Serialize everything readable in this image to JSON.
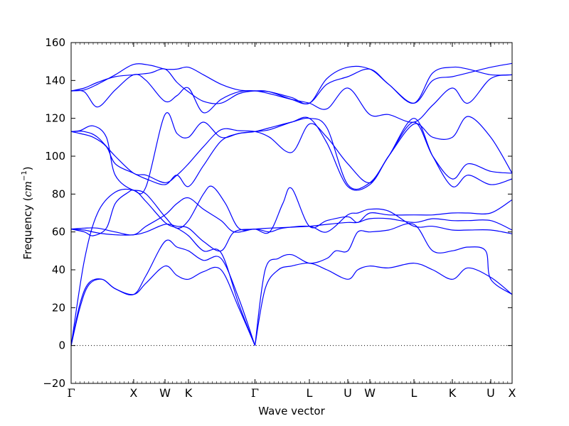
{
  "chart_data": {
    "type": "line",
    "title": "",
    "xlabel": "Wave vector",
    "ylabel_text": "Frequency (",
    "ylabel_unit_base": "cm",
    "ylabel_unit_exp": "−1",
    "ylabel_close": ")",
    "ylim": [
      -20,
      160
    ],
    "yticks": [
      -20,
      0,
      20,
      40,
      60,
      80,
      100,
      120,
      140,
      160
    ],
    "ytick_labels": [
      "−20",
      "0",
      "20",
      "40",
      "60",
      "80",
      "100",
      "120",
      "140",
      "160"
    ],
    "xlim": [
      0,
      1
    ],
    "kpoints": [
      {
        "label": "Γ",
        "x": 0.0
      },
      {
        "label": "X",
        "x": 0.1418
      },
      {
        "label": "W",
        "x": 0.2129
      },
      {
        "label": "K",
        "x": 0.2661
      },
      {
        "label": "Γ",
        "x": 0.4169
      },
      {
        "label": "L",
        "x": 0.5403
      },
      {
        "label": "U",
        "x": 0.6274
      },
      {
        "label": "W",
        "x": 0.6774
      },
      {
        "label": "L",
        "x": 0.7774
      },
      {
        "label": "K",
        "x": 0.8645
      },
      {
        "label": "U",
        "x": 0.9516
      },
      {
        "label": "X",
        "x": 1.0
      }
    ],
    "zero_line": {
      "y": 0,
      "style": "dotted"
    },
    "line_color": "#0000ff",
    "series": [
      {
        "x": [
          0,
          0.02,
          0.04,
          0.07,
          0.1,
          0.1418,
          0.17,
          0.2129,
          0.24,
          0.2661,
          0.3,
          0.34,
          0.38,
          0.4169
        ],
        "y": [
          0,
          20,
          32,
          35,
          30,
          27,
          33,
          42,
          37,
          35,
          39,
          40,
          20,
          0
        ]
      },
      {
        "x": [
          0,
          0.02,
          0.04,
          0.07,
          0.1,
          0.1418,
          0.17,
          0.2129,
          0.24,
          0.2661,
          0.3,
          0.34,
          0.38,
          0.4169
        ],
        "y": [
          0,
          22,
          33,
          35,
          30,
          27,
          37,
          55,
          52,
          50,
          45,
          46,
          25,
          0
        ]
      },
      {
        "x": [
          0,
          0.03,
          0.06,
          0.1,
          0.1418,
          0.17,
          0.2129,
          0.24,
          0.2661,
          0.3,
          0.34,
          0.38,
          0.4169
        ],
        "y": [
          0,
          45,
          70,
          81,
          82,
          76,
          65,
          62,
          58,
          50,
          49,
          22,
          0
        ]
      },
      {
        "x": [
          0.4169,
          0.44,
          0.47,
          0.5,
          0.5403,
          0.58,
          0.6274,
          0.65,
          0.6774,
          0.72,
          0.7774,
          0.82,
          0.8645,
          0.9,
          0.9516,
          1.0
        ],
        "y": [
          0,
          30,
          40,
          42,
          43.5,
          40,
          35,
          40,
          42,
          41,
          43.5,
          40,
          35,
          41,
          36,
          27
        ]
      },
      {
        "x": [
          0.4169,
          0.44,
          0.47,
          0.5,
          0.5403,
          0.58,
          0.6,
          0.6274,
          0.65,
          0.6774,
          0.72,
          0.7774,
          0.82,
          0.8645,
          0.9,
          0.94,
          0.9516,
          1.0
        ],
        "y": [
          0,
          40,
          46,
          48,
          43.5,
          46,
          50,
          50,
          60,
          60,
          61,
          64,
          50,
          50,
          52,
          50,
          35,
          27
        ]
      },
      {
        "x": [
          0,
          0.03,
          0.05,
          0.08,
          0.1,
          0.13,
          0.1418,
          0.17,
          0.2129,
          0.24,
          0.2661,
          0.3,
          0.32,
          0.35,
          0.38,
          0.4169,
          0.45,
          0.48,
          0.5,
          0.5403,
          0.58,
          0.6274,
          0.65,
          0.6774,
          0.72,
          0.7774,
          0.82,
          0.8645,
          0.9,
          0.9516,
          1.0
        ],
        "y": [
          61.5,
          60,
          58,
          62,
          75,
          81,
          82,
          80,
          68,
          62,
          66,
          80,
          84,
          75,
          62,
          61.5,
          60,
          75,
          83,
          63,
          66,
          68,
          65,
          70,
          69,
          69,
          69,
          70,
          70,
          70,
          77
        ]
      },
      {
        "x": [
          0,
          0.03,
          0.06,
          0.1,
          0.1418,
          0.17,
          0.2129,
          0.24,
          0.2661,
          0.3,
          0.34,
          0.37,
          0.4169,
          0.45,
          0.5,
          0.5403,
          0.58,
          0.6274,
          0.65,
          0.6774,
          0.72,
          0.7774,
          0.82,
          0.8645,
          0.9,
          0.9516,
          1.0
        ],
        "y": [
          61.5,
          61,
          59.5,
          58.5,
          58.5,
          60,
          64,
          63,
          62,
          55,
          50,
          60,
          61.5,
          62,
          62.5,
          63,
          64,
          65,
          65,
          67,
          67,
          65,
          67,
          66,
          66,
          66,
          61
        ]
      },
      {
        "x": [
          0,
          0.03,
          0.06,
          0.1,
          0.1418,
          0.17,
          0.2129,
          0.24,
          0.2661,
          0.3,
          0.34,
          0.37,
          0.4169,
          0.45,
          0.48,
          0.5403,
          0.58,
          0.6274,
          0.65,
          0.6774,
          0.72,
          0.7774,
          0.82,
          0.8645,
          0.9,
          0.9516,
          1.0
        ],
        "y": [
          61.5,
          62,
          62,
          60,
          58.5,
          63,
          69,
          75,
          78,
          72,
          66,
          60,
          61.5,
          60,
          62,
          63,
          60,
          69,
          70,
          72,
          71,
          63,
          63,
          61,
          61,
          61,
          59
        ]
      },
      {
        "x": [
          0,
          0.03,
          0.06,
          0.1,
          0.1418,
          0.17,
          0.2129,
          0.24,
          0.2661,
          0.3,
          0.34,
          0.38,
          0.4169,
          0.45,
          0.5,
          0.5403,
          0.58,
          0.6274,
          0.6774,
          0.72,
          0.7774,
          0.82,
          0.8645,
          0.9,
          0.9516,
          1.0
        ],
        "y": [
          113,
          113,
          110,
          100,
          91,
          90,
          86,
          90,
          96,
          105,
          114,
          113.5,
          113,
          110,
          102,
          117,
          110,
          96,
          86,
          100,
          117,
          110,
          110,
          121,
          110,
          91
        ]
      },
      {
        "x": [
          0,
          0.02,
          0.05,
          0.08,
          0.1,
          0.1418,
          0.17,
          0.2129,
          0.24,
          0.2661,
          0.3,
          0.34,
          0.38,
          0.4169,
          0.45,
          0.5,
          0.5403,
          0.58,
          0.6274,
          0.6774,
          0.72,
          0.7774,
          0.82,
          0.8645,
          0.9,
          0.9516,
          1.0
        ],
        "y": [
          113,
          113.5,
          116,
          110,
          90,
          82,
          84,
          122,
          112,
          110,
          118,
          110,
          112,
          113,
          115,
          118,
          120,
          115,
          85,
          86,
          100,
          120,
          100,
          84,
          90,
          85,
          88
        ]
      },
      {
        "x": [
          0,
          0.02,
          0.05,
          0.08,
          0.1,
          0.1418,
          0.17,
          0.2129,
          0.24,
          0.2661,
          0.3,
          0.34,
          0.38,
          0.4169,
          0.45,
          0.5,
          0.5403,
          0.58,
          0.6274,
          0.6774,
          0.72,
          0.7774,
          0.82,
          0.8645,
          0.9,
          0.9516,
          1.0
        ],
        "y": [
          113,
          112,
          110,
          105,
          96,
          91,
          88,
          85,
          90,
          84,
          95,
          108,
          112,
          113,
          114,
          118,
          120,
          107,
          84,
          85,
          100,
          118,
          100,
          88,
          96,
          92,
          91
        ]
      },
      {
        "x": [
          0,
          0.03,
          0.06,
          0.1,
          0.1418,
          0.17,
          0.2129,
          0.24,
          0.2661,
          0.3,
          0.34,
          0.38,
          0.4169,
          0.45,
          0.5,
          0.5403,
          0.58,
          0.6274,
          0.6774,
          0.72,
          0.7774,
          0.82,
          0.8645,
          0.9,
          0.9516,
          1.0
        ],
        "y": [
          134.5,
          134,
          126,
          135,
          143,
          140,
          129,
          132,
          136,
          123,
          130,
          134,
          134.5,
          133,
          130,
          128,
          125,
          136,
          122,
          122,
          118,
          127,
          136,
          128,
          141,
          143
        ]
      },
      {
        "x": [
          0,
          0.03,
          0.06,
          0.1,
          0.1418,
          0.18,
          0.2129,
          0.24,
          0.2661,
          0.3,
          0.34,
          0.38,
          0.4169,
          0.45,
          0.5,
          0.5403,
          0.58,
          0.6274,
          0.6774,
          0.72,
          0.7774,
          0.82,
          0.8645,
          0.9,
          0.9516,
          1.0
        ],
        "y": [
          134.5,
          136,
          139,
          142,
          143,
          144,
          146,
          139,
          134,
          129,
          128,
          133,
          134.5,
          134,
          130,
          128,
          138,
          142,
          146,
          138,
          128,
          140,
          142,
          144,
          147,
          149
        ]
      },
      {
        "x": [
          0,
          0.03,
          0.06,
          0.1,
          0.1418,
          0.18,
          0.2129,
          0.24,
          0.2661,
          0.3,
          0.34,
          0.38,
          0.4169,
          0.45,
          0.5,
          0.5403,
          0.58,
          0.6274,
          0.6774,
          0.72,
          0.7774,
          0.82,
          0.8645,
          0.9,
          0.9516,
          1.0
        ],
        "y": [
          134.5,
          135,
          138,
          143,
          148.5,
          148,
          146,
          146,
          147,
          143,
          138,
          135,
          134.5,
          134,
          131,
          128,
          141,
          147,
          146,
          138,
          128,
          144,
          147,
          146,
          143,
          143
        ]
      }
    ]
  }
}
